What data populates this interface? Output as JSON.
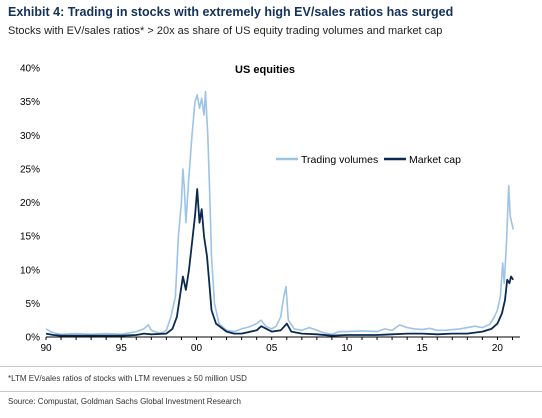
{
  "title": "Exhibit 4: Trading in stocks with extremely high EV/sales ratios has surged",
  "subtitle": "Stocks with EV/sales ratios* > 20x as share of US equity trading volumes and market cap",
  "footnote": "*LTM EV/sales ratios of stocks with LTM revenues ≥ 50 million USD",
  "source": "Source: Compustat, Goldman Sachs Global Investment Research",
  "chart_data": {
    "type": "line",
    "title": "US equities",
    "xlabel": "",
    "ylabel": "",
    "xlim": [
      1990,
      2021.5
    ],
    "ylim": [
      0,
      40
    ],
    "x_ticks": [
      1990,
      1995,
      2000,
      2005,
      2010,
      2015,
      2020
    ],
    "x_tick_labels": [
      "90",
      "95",
      "00",
      "05",
      "10",
      "15",
      "20"
    ],
    "y_ticks": [
      0,
      5,
      10,
      15,
      20,
      25,
      30,
      35,
      40
    ],
    "y_tick_labels": [
      "0%",
      "5%",
      "10%",
      "15%",
      "20%",
      "25%",
      "30%",
      "35%",
      "40%"
    ],
    "grid": false,
    "legend_position": "center-right",
    "series": [
      {
        "name": "Trading volumes",
        "color": "#9dc3e6",
        "points": [
          [
            1990.0,
            1.2
          ],
          [
            1990.3,
            0.8
          ],
          [
            1990.7,
            0.5
          ],
          [
            1991.0,
            0.4
          ],
          [
            1992.0,
            0.5
          ],
          [
            1993.0,
            0.4
          ],
          [
            1994.0,
            0.5
          ],
          [
            1995.0,
            0.4
          ],
          [
            1996.0,
            0.8
          ],
          [
            1996.5,
            1.2
          ],
          [
            1996.8,
            1.8
          ],
          [
            1997.0,
            1.0
          ],
          [
            1997.5,
            0.6
          ],
          [
            1997.8,
            0.7
          ],
          [
            1998.0,
            1.0
          ],
          [
            1998.3,
            3.0
          ],
          [
            1998.6,
            6.0
          ],
          [
            1998.8,
            15.0
          ],
          [
            1999.0,
            20.0
          ],
          [
            1999.1,
            25.0
          ],
          [
            1999.2,
            22.0
          ],
          [
            1999.3,
            17.0
          ],
          [
            1999.5,
            24.0
          ],
          [
            1999.7,
            30.0
          ],
          [
            1999.9,
            35.0
          ],
          [
            2000.05,
            36.0
          ],
          [
            2000.2,
            34.0
          ],
          [
            2000.35,
            35.5
          ],
          [
            2000.5,
            33.0
          ],
          [
            2000.6,
            36.5
          ],
          [
            2000.75,
            30.0
          ],
          [
            2000.9,
            20.0
          ],
          [
            2001.0,
            12.0
          ],
          [
            2001.2,
            5.0
          ],
          [
            2001.5,
            2.0
          ],
          [
            2002.0,
            1.0
          ],
          [
            2002.5,
            0.8
          ],
          [
            2003.0,
            1.2
          ],
          [
            2003.5,
            1.5
          ],
          [
            2004.0,
            2.0
          ],
          [
            2004.3,
            2.5
          ],
          [
            2004.6,
            1.6
          ],
          [
            2005.0,
            1.2
          ],
          [
            2005.3,
            1.6
          ],
          [
            2005.6,
            3.0
          ],
          [
            2005.8,
            6.0
          ],
          [
            2005.95,
            7.5
          ],
          [
            2006.1,
            2.5
          ],
          [
            2006.5,
            1.2
          ],
          [
            2007.0,
            1.0
          ],
          [
            2007.5,
            1.4
          ],
          [
            2008.0,
            1.0
          ],
          [
            2008.5,
            0.6
          ],
          [
            2009.0,
            0.4
          ],
          [
            2009.5,
            0.8
          ],
          [
            2010.0,
            0.8
          ],
          [
            2011.0,
            0.9
          ],
          [
            2012.0,
            0.8
          ],
          [
            2012.5,
            1.2
          ],
          [
            2013.0,
            1.0
          ],
          [
            2013.5,
            1.8
          ],
          [
            2014.0,
            1.4
          ],
          [
            2014.5,
            1.2
          ],
          [
            2015.0,
            1.1
          ],
          [
            2015.5,
            1.3
          ],
          [
            2016.0,
            1.0
          ],
          [
            2016.5,
            1.0
          ],
          [
            2017.0,
            1.1
          ],
          [
            2017.5,
            1.2
          ],
          [
            2018.0,
            1.4
          ],
          [
            2018.5,
            1.6
          ],
          [
            2019.0,
            1.4
          ],
          [
            2019.5,
            1.9
          ],
          [
            2019.8,
            3.0
          ],
          [
            2020.0,
            4.0
          ],
          [
            2020.2,
            6.0
          ],
          [
            2020.35,
            11.0
          ],
          [
            2020.45,
            8.0
          ],
          [
            2020.6,
            14.0
          ],
          [
            2020.75,
            22.5
          ],
          [
            2020.85,
            18.0
          ],
          [
            2020.95,
            17.0
          ],
          [
            2021.05,
            16.0
          ]
        ]
      },
      {
        "name": "Market cap",
        "color": "#0b2a4f",
        "points": [
          [
            1990.0,
            0.5
          ],
          [
            1990.5,
            0.3
          ],
          [
            1991.0,
            0.2
          ],
          [
            1992.0,
            0.2
          ],
          [
            1993.0,
            0.2
          ],
          [
            1994.0,
            0.2
          ],
          [
            1995.0,
            0.2
          ],
          [
            1996.0,
            0.3
          ],
          [
            1996.5,
            0.5
          ],
          [
            1997.0,
            0.4
          ],
          [
            1998.0,
            0.5
          ],
          [
            1998.4,
            1.2
          ],
          [
            1998.7,
            3.0
          ],
          [
            1998.9,
            6.0
          ],
          [
            1999.1,
            9.0
          ],
          [
            1999.3,
            7.0
          ],
          [
            1999.5,
            10.0
          ],
          [
            1999.7,
            14.0
          ],
          [
            1999.9,
            18.0
          ],
          [
            2000.05,
            22.0
          ],
          [
            2000.2,
            17.0
          ],
          [
            2000.35,
            19.0
          ],
          [
            2000.5,
            15.0
          ],
          [
            2000.7,
            12.0
          ],
          [
            2000.85,
            8.0
          ],
          [
            2001.0,
            4.0
          ],
          [
            2001.3,
            2.0
          ],
          [
            2002.0,
            0.8
          ],
          [
            2002.5,
            0.5
          ],
          [
            2003.0,
            0.5
          ],
          [
            2004.0,
            1.0
          ],
          [
            2004.3,
            1.6
          ],
          [
            2005.0,
            0.8
          ],
          [
            2005.6,
            1.0
          ],
          [
            2006.0,
            2.0
          ],
          [
            2006.3,
            0.8
          ],
          [
            2007.0,
            0.5
          ],
          [
            2008.0,
            0.4
          ],
          [
            2009.0,
            0.2
          ],
          [
            2010.0,
            0.3
          ],
          [
            2011.0,
            0.3
          ],
          [
            2012.0,
            0.3
          ],
          [
            2013.0,
            0.4
          ],
          [
            2014.0,
            0.5
          ],
          [
            2015.0,
            0.5
          ],
          [
            2016.0,
            0.4
          ],
          [
            2017.0,
            0.5
          ],
          [
            2018.0,
            0.5
          ],
          [
            2019.0,
            0.8
          ],
          [
            2019.6,
            1.2
          ],
          [
            2020.0,
            2.0
          ],
          [
            2020.3,
            3.5
          ],
          [
            2020.5,
            5.5
          ],
          [
            2020.65,
            8.5
          ],
          [
            2020.8,
            8.0
          ],
          [
            2020.9,
            9.0
          ],
          [
            2021.05,
            8.5
          ]
        ]
      }
    ]
  }
}
